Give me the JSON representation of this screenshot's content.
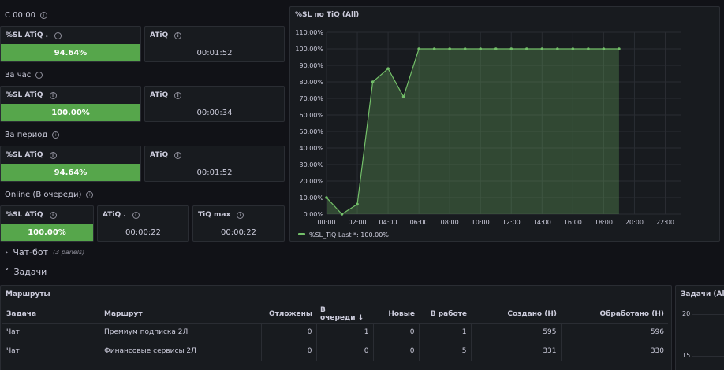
{
  "sections": {
    "since_midnight": "С 00:00",
    "per_hour": "За час",
    "per_period": "За период",
    "online": "Online (В очереди)"
  },
  "stats": {
    "s1": {
      "sl_title": "%SL ATiQ .",
      "sl_value": "94.64%",
      "atiq_title": "ATiQ",
      "atiq_value": "00:01:52"
    },
    "s2": {
      "sl_title": "%SL ATiQ",
      "sl_value": "100.00%",
      "atiq_title": "ATiQ",
      "atiq_value": "00:00:34"
    },
    "s3": {
      "sl_title": "%SL ATiQ",
      "sl_value": "94.64%",
      "atiq_title": "ATiQ",
      "atiq_value": "00:01:52"
    },
    "s4": {
      "sl_title": "%SL ATiQ",
      "sl_value": "100.00%",
      "atiq_title": "ATiQ .",
      "atiq_value": "00:00:22",
      "tiq_title": "TiQ max",
      "tiq_value": "00:00:22"
    }
  },
  "chart_panel": {
    "title": "%SL по TiQ (All)"
  },
  "chart_data": {
    "type": "area",
    "title": "%SL по TiQ (All)",
    "x": [
      "00:00",
      "01:00",
      "02:00",
      "03:00",
      "04:00",
      "05:00",
      "06:00",
      "07:00",
      "08:00",
      "09:00",
      "10:00",
      "11:00",
      "12:00",
      "13:00",
      "14:00",
      "15:00",
      "16:00",
      "17:00",
      "18:00",
      "19:00"
    ],
    "series": [
      {
        "name": "%SL_TiQ",
        "values": [
          10,
          0,
          6,
          80,
          88,
          71,
          100,
          100,
          100,
          100,
          100,
          100,
          100,
          100,
          100,
          100,
          100,
          100,
          100,
          100
        ]
      }
    ],
    "x_ticks": [
      "00:00",
      "02:00",
      "04:00",
      "06:00",
      "08:00",
      "10:00",
      "12:00",
      "14:00",
      "16:00",
      "18:00",
      "20:00",
      "22:00"
    ],
    "y_ticks": [
      "110.00%",
      "100.00%",
      "90.00%",
      "80.00%",
      "70.00%",
      "60.00%",
      "50.00%",
      "40.00%",
      "30.00%",
      "20.00%",
      "10.00%",
      "0.00%"
    ],
    "ylim": [
      0,
      110
    ],
    "xlim_hours": [
      0,
      23
    ],
    "grid": true,
    "legend_placement": "bottom-left",
    "legend_text": "%SL_TiQ  Last *: 100.00%",
    "color": "#73bf69"
  },
  "collapsed_row": {
    "title": "Чат-бот",
    "note": "(3 panels)"
  },
  "tasks_row": {
    "title": "Задачи"
  },
  "routes_table": {
    "title": "Маршруты",
    "columns": [
      "Задача",
      "Маршрут",
      "Отложены",
      "В очереди",
      "Новые",
      "В работе",
      "Создано (Н)",
      "Обработано (Н)"
    ],
    "rows": [
      [
        "Чат",
        "Премиум подписка 2Л",
        "0",
        "1",
        "0",
        "1",
        "595",
        "596"
      ],
      [
        "Чат",
        "Финансовые сервисы 2Л",
        "0",
        "0",
        "0",
        "5",
        "331",
        "330"
      ]
    ]
  },
  "side_panel": {
    "title": "Задачи (All)",
    "y_ticks": [
      "20",
      "15"
    ]
  }
}
